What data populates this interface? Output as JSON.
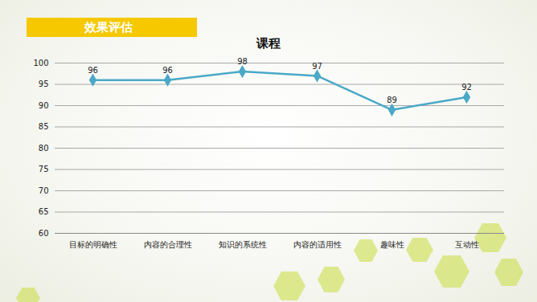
{
  "header": "效果评估",
  "chart_data": {
    "type": "line",
    "title": "课程",
    "categories": [
      "目标的明确性",
      "内容的合理性",
      "知识的系统性",
      "内容的适用性",
      "趣味性",
      "互动性"
    ],
    "values": [
      96,
      96,
      98,
      97,
      89,
      92
    ],
    "color": "#4aa8c8",
    "marker": "diamond",
    "ylim": [
      60,
      100
    ],
    "yticks": [
      60,
      65,
      70,
      75,
      80,
      85,
      90,
      95,
      100
    ],
    "grid": true,
    "data_labels": true
  }
}
